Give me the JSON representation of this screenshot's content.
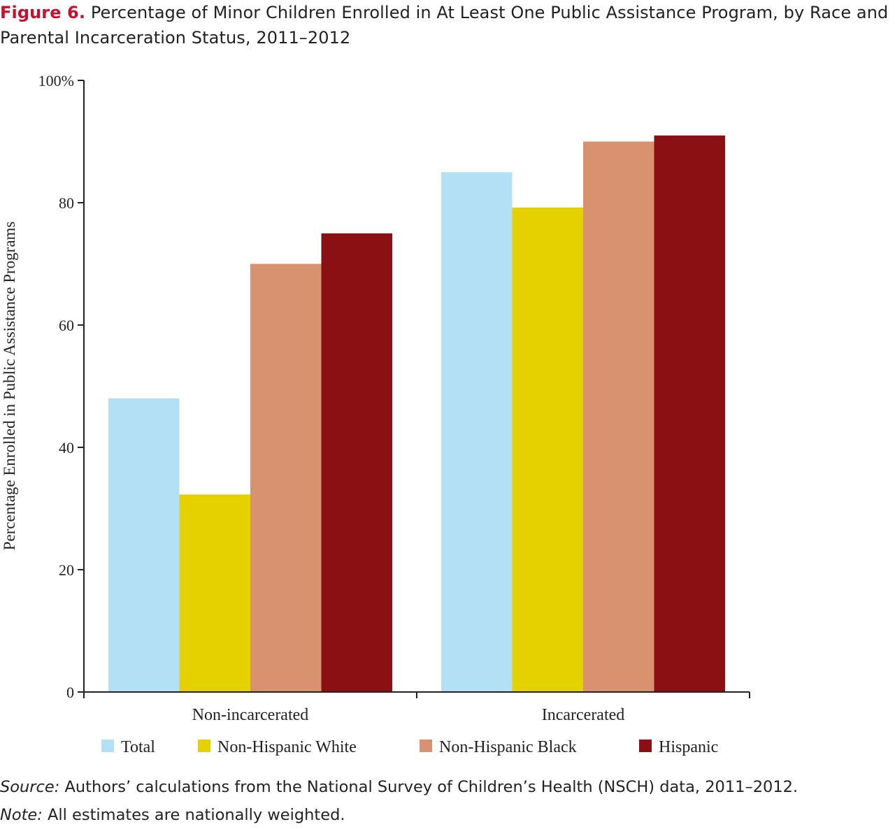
{
  "figure": {
    "label": "Figure 6.",
    "title": "Percentage of Minor Children Enrolled in At Least One Public Assistance Program, by Race and Parental Incarceration Status, 2011–2012"
  },
  "chart_data": {
    "type": "bar",
    "categories": [
      "Non-incarcerated",
      "Incarcerated"
    ],
    "series": [
      {
        "name": "Total",
        "color": "#b3e0f5",
        "values": [
          48,
          85
        ]
      },
      {
        "name": "Non-Hispanic White",
        "color": "#e5d000",
        "values": [
          32.3,
          79.2
        ]
      },
      {
        "name": "Non-Hispanic Black",
        "color": "#d99270",
        "values": [
          70,
          90
        ]
      },
      {
        "name": "Hispanic",
        "color": "#8b1013",
        "values": [
          75,
          91
        ]
      }
    ],
    "ylabel": "Percentage Enrolled in Public Assistance Programs",
    "ylim": [
      0,
      100
    ],
    "yticks": [
      0,
      20,
      40,
      60,
      80,
      100
    ],
    "ytick_labels": [
      "0",
      "20",
      "40",
      "60",
      "80",
      "100%"
    ],
    "grid": false,
    "legend": "bottom"
  },
  "notes": {
    "source_label": "Source:",
    "source_text": " Authors’ calculations from the National Survey of Children’s Health (NSCH) data, 2011–2012.",
    "note_label": "Note:",
    "note_text": " All estimates are nationally weighted."
  }
}
